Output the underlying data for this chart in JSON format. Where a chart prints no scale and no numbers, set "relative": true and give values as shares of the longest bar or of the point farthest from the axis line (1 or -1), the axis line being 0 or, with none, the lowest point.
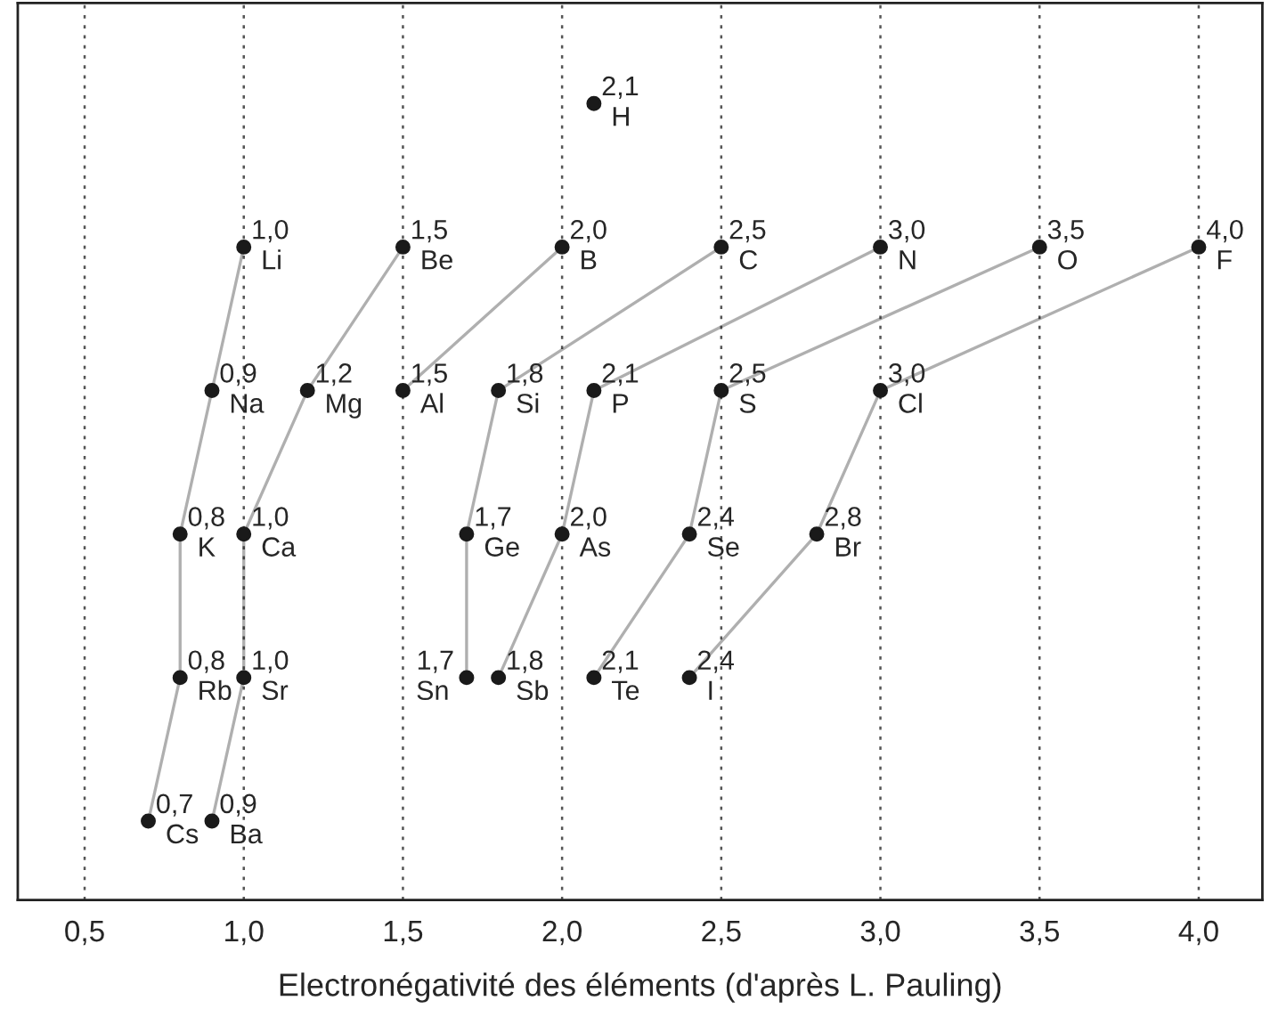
{
  "chart_data": {
    "type": "line",
    "relative": true,
    "xlabel": "Electronégativité des éléments (d'après L. Pauling)",
    "xlim": [
      0.29,
      4.2
    ],
    "xticks": [
      {
        "value": 0.5,
        "label": "0,5"
      },
      {
        "value": 1.0,
        "label": "1,0"
      },
      {
        "value": 1.5,
        "label": "1,5"
      },
      {
        "value": 2.0,
        "label": "2,0"
      },
      {
        "value": 2.5,
        "label": "2,5"
      },
      {
        "value": 3.0,
        "label": "3,0"
      },
      {
        "value": 3.5,
        "label": "3,5"
      },
      {
        "value": 4.0,
        "label": "4,0"
      }
    ],
    "grid": "x",
    "tick_labels": "x",
    "marker": "circle",
    "legend": false,
    "series": [
      {
        "color": "#1a1a1a",
        "x": [
          2.1
        ],
        "values": [
          1.0
        ]
      },
      {
        "color": "#1a1a1a",
        "x": [
          1.0,
          0.9,
          0.8,
          0.8,
          0.7
        ],
        "values": [
          0.8,
          0.6,
          0.4,
          0.2,
          0.0
        ]
      },
      {
        "color": "#1a1a1a",
        "x": [
          1.5,
          1.2,
          1.0,
          1.0,
          0.9
        ],
        "values": [
          0.8,
          0.6,
          0.4,
          0.2,
          0.0
        ]
      },
      {
        "color": "#1a1a1a",
        "x": [
          2.0,
          1.5
        ],
        "values": [
          0.8,
          0.6
        ]
      },
      {
        "color": "#1a1a1a",
        "x": [
          2.5,
          1.8,
          1.7,
          1.7
        ],
        "values": [
          0.8,
          0.6,
          0.4,
          0.2
        ]
      },
      {
        "color": "#1a1a1a",
        "x": [
          3.0,
          2.1,
          2.0,
          1.8
        ],
        "values": [
          0.8,
          0.6,
          0.4,
          0.2
        ]
      },
      {
        "color": "#1a1a1a",
        "x": [
          3.5,
          2.5,
          2.4,
          2.1
        ],
        "values": [
          0.8,
          0.6,
          0.4,
          0.2
        ]
      },
      {
        "color": "#1a1a1a",
        "x": [
          4.0,
          3.0,
          2.8,
          2.4
        ],
        "values": [
          0.8,
          0.6,
          0.4,
          0.2
        ]
      }
    ],
    "annotations": [
      {
        "text": "2,1",
        "x": 2.1,
        "y": 1.0
      },
      {
        "text": "H",
        "x": 2.1,
        "y": 1.0
      },
      {
        "text": "1,0",
        "x": 1.0,
        "y": 0.8
      },
      {
        "text": "Li",
        "x": 1.0,
        "y": 0.8
      },
      {
        "text": "0,9",
        "x": 0.9,
        "y": 0.6
      },
      {
        "text": "Na",
        "x": 0.9,
        "y": 0.6
      },
      {
        "text": "0,8",
        "x": 0.8,
        "y": 0.4
      },
      {
        "text": "K",
        "x": 0.8,
        "y": 0.4
      },
      {
        "text": "0,8",
        "x": 0.8,
        "y": 0.2
      },
      {
        "text": "Rb",
        "x": 0.8,
        "y": 0.2
      },
      {
        "text": "0,7",
        "x": 0.7,
        "y": 0.0
      },
      {
        "text": "Cs",
        "x": 0.7,
        "y": 0.0
      },
      {
        "text": "1,5",
        "x": 1.5,
        "y": 0.8
      },
      {
        "text": "Be",
        "x": 1.5,
        "y": 0.8
      },
      {
        "text": "1,2",
        "x": 1.2,
        "y": 0.6
      },
      {
        "text": "Mg",
        "x": 1.2,
        "y": 0.6
      },
      {
        "text": "1,0",
        "x": 1.0,
        "y": 0.4
      },
      {
        "text": "Ca",
        "x": 1.0,
        "y": 0.4
      },
      {
        "text": "1,0",
        "x": 1.0,
        "y": 0.2
      },
      {
        "text": "Sr",
        "x": 1.0,
        "y": 0.2
      },
      {
        "text": "0,9",
        "x": 0.9,
        "y": 0.0
      },
      {
        "text": "Ba",
        "x": 0.9,
        "y": 0.0
      },
      {
        "text": "2,0",
        "x": 2.0,
        "y": 0.8
      },
      {
        "text": "B",
        "x": 2.0,
        "y": 0.8
      },
      {
        "text": "1,5",
        "x": 1.5,
        "y": 0.6
      },
      {
        "text": "Al",
        "x": 1.5,
        "y": 0.6
      },
      {
        "text": "2,5",
        "x": 2.5,
        "y": 0.8
      },
      {
        "text": "C",
        "x": 2.5,
        "y": 0.8
      },
      {
        "text": "1,8",
        "x": 1.8,
        "y": 0.6
      },
      {
        "text": "Si",
        "x": 1.8,
        "y": 0.6
      },
      {
        "text": "1,7",
        "x": 1.7,
        "y": 0.4
      },
      {
        "text": "Ge",
        "x": 1.7,
        "y": 0.4
      },
      {
        "text": "1,7",
        "x": 1.7,
        "y": 0.2
      },
      {
        "text": "Sn",
        "x": 1.7,
        "y": 0.2
      },
      {
        "text": "3,0",
        "x": 3.0,
        "y": 0.8
      },
      {
        "text": "N",
        "x": 3.0,
        "y": 0.8
      },
      {
        "text": "2,1",
        "x": 2.1,
        "y": 0.6
      },
      {
        "text": "P",
        "x": 2.1,
        "y": 0.6
      },
      {
        "text": "2,0",
        "x": 2.0,
        "y": 0.4
      },
      {
        "text": "As",
        "x": 2.0,
        "y": 0.4
      },
      {
        "text": "1,8",
        "x": 1.8,
        "y": 0.2
      },
      {
        "text": "Sb",
        "x": 1.8,
        "y": 0.2
      },
      {
        "text": "3,5",
        "x": 3.5,
        "y": 0.8
      },
      {
        "text": "O",
        "x": 3.5,
        "y": 0.8
      },
      {
        "text": "2,5",
        "x": 2.5,
        "y": 0.6
      },
      {
        "text": "S",
        "x": 2.5,
        "y": 0.6
      },
      {
        "text": "2,4",
        "x": 2.4,
        "y": 0.4
      },
      {
        "text": "Se",
        "x": 2.4,
        "y": 0.4
      },
      {
        "text": "2,1",
        "x": 2.1,
        "y": 0.2
      },
      {
        "text": "Te",
        "x": 2.1,
        "y": 0.2
      },
      {
        "text": "4,0",
        "x": 4.0,
        "y": 0.8
      },
      {
        "text": "F",
        "x": 4.0,
        "y": 0.8
      },
      {
        "text": "3,0",
        "x": 3.0,
        "y": 0.6
      },
      {
        "text": "Cl",
        "x": 3.0,
        "y": 0.6
      },
      {
        "text": "2,8",
        "x": 2.8,
        "y": 0.4
      },
      {
        "text": "Br",
        "x": 2.8,
        "y": 0.4
      },
      {
        "text": "2,4",
        "x": 2.4,
        "y": 0.2
      },
      {
        "text": "I",
        "x": 2.4,
        "y": 0.2
      }
    ]
  }
}
